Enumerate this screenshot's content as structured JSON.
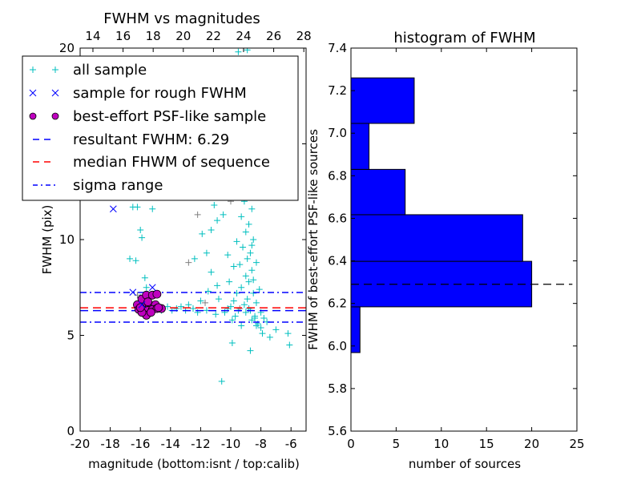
{
  "chart_data": [
    {
      "type": "scatter",
      "title": "FWHM vs magnitudes",
      "xlabel": "magnitude (bottom:isnt / top:calib)",
      "ylabel": "FWHM (pix)",
      "xlim": [
        -20,
        -5
      ],
      "ylim": [
        0,
        20
      ],
      "xticks": [
        "-20",
        "-18",
        "-16",
        "-14",
        "-12",
        "-10",
        "-8",
        "-6"
      ],
      "xtick_values": [
        -20,
        -18,
        -16,
        -14,
        -12,
        -10,
        -8,
        -6
      ],
      "top_xticks": [
        "14",
        "16",
        "18",
        "20",
        "22",
        "24",
        "26",
        "28"
      ],
      "top_xtick_values": [
        14,
        16,
        18,
        20,
        22,
        24,
        26,
        28
      ],
      "top_offset": 33.15,
      "yticks": [
        "0",
        "5",
        "10",
        "15",
        "20"
      ],
      "ytick_values": [
        0,
        5,
        10,
        15,
        20
      ],
      "legend": {
        "placement": "upper-left",
        "entries": [
          "all sample",
          "sample for rough FWHM",
          "best-effort PSF-like sample",
          "resultant FWHM: 6.29",
          "median FHWM of sequence",
          "sigma range"
        ]
      },
      "lines": {
        "resultant": 6.29,
        "median": 6.44,
        "sigma_low": 5.69,
        "sigma_high": 7.24
      },
      "colors": {
        "all": "#00bfbf",
        "rough": "#0000ff",
        "psf": "#bf00bf",
        "gray": "#808080",
        "resultant": "#0000ff",
        "median": "#ff0000",
        "sigma": "#0000ff"
      },
      "series": {
        "all_sample": [
          [
            -9.5,
            19.8
          ],
          [
            -8.9,
            19.9
          ],
          [
            -9.1,
            19.3
          ],
          [
            -9.3,
            17.5
          ],
          [
            -8.8,
            16.8
          ],
          [
            -9.0,
            15.5
          ],
          [
            -9.2,
            14.2
          ],
          [
            -8.7,
            13.8
          ],
          [
            -9.4,
            13.0
          ],
          [
            -8.9,
            12.5
          ],
          [
            -9.1,
            12.0
          ],
          [
            -8.6,
            11.6
          ],
          [
            -9.3,
            11.2
          ],
          [
            -8.8,
            10.8
          ],
          [
            -9.0,
            10.4
          ],
          [
            -8.5,
            10.0
          ],
          [
            -9.2,
            9.6
          ],
          [
            -8.7,
            9.3
          ],
          [
            -8.9,
            9.0
          ],
          [
            -9.4,
            8.7
          ],
          [
            -8.6,
            8.4
          ],
          [
            -9.0,
            8.1
          ],
          [
            -8.8,
            7.8
          ],
          [
            -9.3,
            7.5
          ],
          [
            -8.5,
            7.2
          ],
          [
            -8.9,
            6.9
          ],
          [
            -9.1,
            6.6
          ],
          [
            -8.7,
            6.3
          ],
          [
            -8.4,
            6.0
          ],
          [
            -8.6,
            5.8
          ],
          [
            -8.2,
            5.6
          ],
          [
            -8.0,
            5.4
          ],
          [
            -7.6,
            5.7
          ],
          [
            -7.0,
            5.3
          ],
          [
            -9.6,
            9.9
          ],
          [
            -9.8,
            8.6
          ],
          [
            -10.2,
            9.2
          ],
          [
            -10.5,
            11.3
          ],
          [
            -11.1,
            11.8
          ],
          [
            -11.9,
            10.3
          ],
          [
            -12.4,
            9.0
          ],
          [
            -12.0,
            6.8
          ],
          [
            -11.5,
            7.3
          ],
          [
            -10.8,
            6.9
          ],
          [
            -10.0,
            6.5
          ],
          [
            -11.0,
            6.1
          ],
          [
            -12.5,
            6.4
          ],
          [
            -13.0,
            6.3
          ],
          [
            -13.6,
            6.4
          ],
          [
            -14.2,
            6.5
          ],
          [
            -14.6,
            6.3
          ],
          [
            -12.8,
            6.6
          ],
          [
            -10.4,
            6.2
          ],
          [
            -9.7,
            6.0
          ],
          [
            -8.4,
            5.9
          ],
          [
            -9.9,
            4.6
          ],
          [
            -8.7,
            4.2
          ],
          [
            -6.2,
            5.1
          ],
          [
            -6.1,
            4.5
          ],
          [
            -10.6,
            2.6
          ],
          [
            -11.3,
            8.3
          ],
          [
            -10.9,
            7.6
          ],
          [
            -16.5,
            11.7
          ],
          [
            -16.2,
            11.7
          ],
          [
            -15.2,
            11.6
          ],
          [
            -16.0,
            10.5
          ],
          [
            -15.9,
            10.1
          ],
          [
            -16.3,
            8.9
          ],
          [
            -15.7,
            8.0
          ],
          [
            -15.6,
            7.5
          ],
          [
            -16.7,
            9.0
          ],
          [
            -16.0,
            7.0
          ],
          [
            -15.5,
            12.5
          ],
          [
            -13.0,
            12.3
          ],
          [
            -12.4,
            12.2
          ],
          [
            -11.6,
            9.3
          ],
          [
            -11.3,
            10.5
          ],
          [
            -10.9,
            11.0
          ],
          [
            -9.6,
            13.5
          ],
          [
            -8.9,
            14.6
          ],
          [
            -9.2,
            16.1
          ],
          [
            -9.7,
            18.2
          ],
          [
            -8.6,
            9.7
          ],
          [
            -8.3,
            8.8
          ],
          [
            -8.5,
            7.9
          ],
          [
            -8.1,
            7.4
          ],
          [
            -8.3,
            6.7
          ],
          [
            -8.0,
            6.2
          ],
          [
            -7.8,
            5.9
          ],
          [
            -9.5,
            6.3
          ],
          [
            -9.0,
            6.2
          ],
          [
            -10.2,
            6.4
          ],
          [
            -11.6,
            6.3
          ],
          [
            -12.2,
            6.2
          ],
          [
            -13.3,
            6.5
          ],
          [
            -13.9,
            6.3
          ],
          [
            -9.6,
            7.2
          ],
          [
            -9.8,
            6.8
          ],
          [
            -10.1,
            7.8
          ],
          [
            -8.8,
            6.4
          ],
          [
            -8.3,
            5.5
          ],
          [
            -7.9,
            5.1
          ],
          [
            -7.4,
            4.9
          ],
          [
            -9.3,
            5.5
          ],
          [
            -9.9,
            5.8
          ]
        ],
        "gray_sample": [
          [
            -14.7,
            12.4
          ],
          [
            -12.8,
            8.8
          ],
          [
            -16.2,
            7.1
          ],
          [
            -11.7,
            6.7
          ],
          [
            -10.0,
            12.0
          ],
          [
            -9.5,
            13.2
          ],
          [
            -12.2,
            11.3
          ],
          [
            -9.4,
            6.4
          ]
        ],
        "rough_sample": [
          [
            -17.8,
            11.6
          ],
          [
            -16.5,
            7.25
          ],
          [
            -15.2,
            7.5
          ],
          [
            -15.9,
            6.6
          ]
        ],
        "psf_like_sample": [
          [
            -16.2,
            6.6
          ],
          [
            -15.9,
            6.9
          ],
          [
            -15.6,
            7.1
          ],
          [
            -15.2,
            7.1
          ],
          [
            -14.9,
            7.15
          ],
          [
            -15.7,
            6.5
          ],
          [
            -15.4,
            6.5
          ],
          [
            -15.0,
            6.6
          ],
          [
            -16.1,
            6.35
          ],
          [
            -15.8,
            6.3
          ],
          [
            -15.5,
            6.3
          ],
          [
            -15.2,
            6.35
          ],
          [
            -14.9,
            6.4
          ],
          [
            -14.6,
            6.4
          ],
          [
            -15.6,
            6.05
          ],
          [
            -15.9,
            6.2
          ],
          [
            -16.0,
            6.45
          ],
          [
            -15.3,
            6.2
          ],
          [
            -14.8,
            6.45
          ],
          [
            -15.5,
            6.75
          ]
        ]
      }
    },
    {
      "type": "bar",
      "orientation": "horizontal",
      "title": "histogram of FWHM",
      "xlabel": "number of sources",
      "ylabel": "FWHM of best-effort PSF-like sources",
      "xlim": [
        0,
        25
      ],
      "ylim": [
        5.6,
        7.4
      ],
      "xticks": [
        "0",
        "5",
        "10",
        "15",
        "20",
        "25"
      ],
      "xtick_values": [
        0,
        5,
        10,
        15,
        20,
        25
      ],
      "yticks": [
        "5.6",
        "5.8",
        "6.0",
        "6.2",
        "6.4",
        "6.6",
        "6.8",
        "7.0",
        "7.2",
        "7.4"
      ],
      "ytick_values": [
        5.6,
        5.8,
        6.0,
        6.2,
        6.4,
        6.6,
        6.8,
        7.0,
        7.2,
        7.4
      ],
      "bin_edges": [
        5.969,
        6.184,
        6.398,
        6.617,
        6.83,
        7.046,
        7.26
      ],
      "values": [
        1,
        20,
        19,
        6,
        2,
        7
      ],
      "bar_color": "#0000ff",
      "reference_line": {
        "value": 6.29,
        "xmax": 24.5
      }
    }
  ]
}
